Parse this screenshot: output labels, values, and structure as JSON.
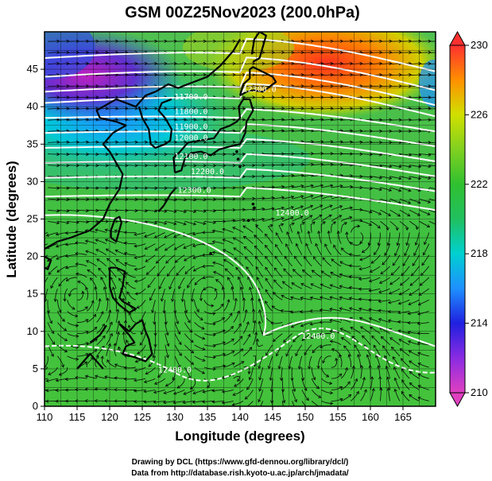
{
  "chart_data": {
    "type": "heatmap",
    "title": "GSM 00Z25Nov2023 (200.0hPa)",
    "xlabel": "Longitude (degrees)",
    "ylabel": "Latitude  (degrees)",
    "xlim": [
      110,
      170
    ],
    "ylim": [
      0,
      50
    ],
    "x_ticks": [
      110,
      115,
      120,
      125,
      130,
      135,
      140,
      145,
      150,
      155,
      160,
      165
    ],
    "y_ticks": [
      0,
      5,
      10,
      15,
      20,
      25,
      30,
      35,
      40,
      45
    ],
    "grid": true,
    "colorbar": {
      "min": 210,
      "max": 230,
      "ticks": [
        210,
        214,
        218,
        222,
        226,
        230
      ],
      "placement": "right"
    },
    "contour_labels": [
      {
        "text": "11700.0",
        "lon": 132.5,
        "lat": 41
      },
      {
        "text": "11800.0",
        "lon": 132.5,
        "lat": 39
      },
      {
        "text": "11900.0",
        "lon": 132.5,
        "lat": 37
      },
      {
        "text": "12000.0",
        "lon": 132.5,
        "lat": 35.5
      },
      {
        "text": "12100.0",
        "lon": 132.5,
        "lat": 33
      },
      {
        "text": "12200.0",
        "lon": 135,
        "lat": 31
      },
      {
        "text": "12300.0",
        "lon": 133,
        "lat": 28.5
      },
      {
        "text": "12400.0",
        "lon": 148,
        "lat": 25.5
      },
      {
        "text": "12300.0",
        "lon": 143,
        "lat": 42
      },
      {
        "text": "12400.0",
        "lon": 152,
        "lat": 9
      },
      {
        "text": "12400.0",
        "lon": 130,
        "lat": 4.5
      }
    ]
  },
  "credits": {
    "line1": "Drawing by DCL (https://www.gfd-dennou.org/library/dcl/)",
    "line2": "Data from http://database.rish.kyoto-u.ac.jp/arch/jmadata/"
  }
}
